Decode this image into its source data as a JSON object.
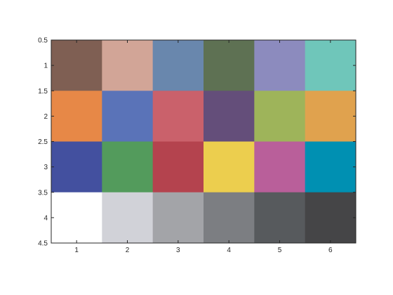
{
  "chart_data": {
    "type": "heatmap",
    "title": "",
    "xlabel": "",
    "ylabel": "",
    "x_categories": [
      "1",
      "2",
      "3",
      "4",
      "5",
      "6"
    ],
    "y_categories": [
      "1",
      "2",
      "3",
      "4"
    ],
    "xlim": [
      0.5,
      6.5
    ],
    "ylim": [
      0.5,
      4.5
    ],
    "y_direction": "reverse",
    "x_ticks": [
      1,
      2,
      3,
      4,
      5,
      6
    ],
    "x_tick_labels": [
      "1",
      "2",
      "3",
      "4",
      "5",
      "6"
    ],
    "y_ticks": [
      0.5,
      1,
      1.5,
      2,
      2.5,
      3,
      3.5,
      4,
      4.5
    ],
    "y_tick_labels": [
      "0.5",
      "1",
      "1.5",
      "2",
      "2.5",
      "3",
      "3.5",
      "4",
      "4.5"
    ],
    "cells": [
      [
        "#7f5f53",
        "#d2a597",
        "#6987ad",
        "#5e7153",
        "#8c8bbe",
        "#6fc6ba"
      ],
      [
        "#e78847",
        "#5a73b8",
        "#ca616b",
        "#644e7a",
        "#9eb45a",
        "#e0a24e"
      ],
      [
        "#43509f",
        "#539b5c",
        "#b4434e",
        "#ecce4e",
        "#b95f9a",
        "#0090b2"
      ],
      [
        "#ffffff",
        "#d1d2d8",
        "#a3a4a8",
        "#7c7e82",
        "#575a5d",
        "#454547"
      ]
    ]
  }
}
